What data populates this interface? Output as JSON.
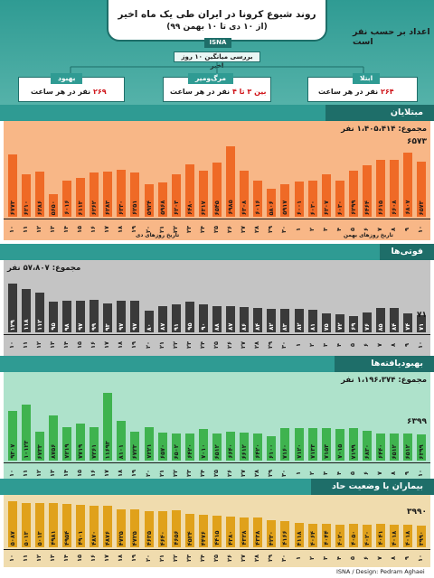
{
  "header": {
    "title": "روند شیوع کرونا در ایران طی یک ماه اخیر",
    "subtitle": "(از ۱۰ دی تا ۱۰ بهمن ۹۹)",
    "isna": "ISNA",
    "sub_heading": "اعداد بر حسب نفر است",
    "avg_label": "بررسی میانگین ۱۰ روز اخیر"
  },
  "stats": {
    "recovered": {
      "label": "بهبود",
      "value": "۲۶۹",
      "suffix": "نفر در هر ساعت"
    },
    "deaths": {
      "label": "مرگ‌ومیر",
      "value": "بین ۳ تا ۴",
      "suffix": "نفر در هر ساعت"
    },
    "infected": {
      "label": "ابتلا",
      "value": "۲۶۴",
      "suffix": "نفر در هر ساعت"
    }
  },
  "colors": {
    "teal": "#2f9b93",
    "teal_dark": "#1e6e69",
    "infected_bg": "#f8b787",
    "infected_bar": "#ef6a26",
    "deaths_bg": "#c4c4c4",
    "deaths_bar": "#3a3a3a",
    "recovered_bg": "#aee2cb",
    "recovered_bar": "#3fb34f",
    "critical_bg": "#f0dcae",
    "critical_bar": "#e0a11b",
    "highlight": "#d0161b"
  },
  "day_labels": [
    "۱۰",
    "۱۱",
    "۱۲",
    "۱۳",
    "۱۴",
    "۱۵",
    "۱۶",
    "۱۷",
    "۱۸",
    "۱۹",
    "۲۰",
    "۲۱",
    "۲۲",
    "۲۳",
    "۲۴",
    "۲۵",
    "۲۶",
    "۲۷",
    "۲۸",
    "۲۹",
    "۳۰",
    "۱",
    "۲",
    "۳",
    "۴",
    "۵",
    "۶",
    "۷",
    "۸",
    "۹",
    "۱۰"
  ],
  "month_labels": {
    "dey": "تاریخ روزهای دی",
    "bahman": "تاریخ روزهای بهمن"
  },
  "chart_data": [
    {
      "type": "bar",
      "title": "مبتلایان",
      "total": "مجموع: ۱،۴۰۵،۴۱۴ نفر",
      "categories": [
        "۱۰",
        "۱۱",
        "۱۲",
        "۱۳",
        "۱۴",
        "۱۵",
        "۱۶",
        "۱۷",
        "۱۸",
        "۱۹",
        "۲۰",
        "۲۱",
        "۲۲",
        "۲۳",
        "۲۴",
        "۲۵",
        "۲۶",
        "۲۷",
        "۲۸",
        "۲۹",
        "۳۰",
        "۱",
        "۲",
        "۳",
        "۴",
        "۵",
        "۶",
        "۷",
        "۸",
        "۹",
        "۱۰"
      ],
      "values": [
        6773,
        6210,
        6286,
        5650,
        6016,
        6113,
        6262,
        6283,
        6330,
        6251,
        5924,
        5968,
        6203,
        6480,
        6317,
        6545,
        6985,
        6308,
        6016,
        5806,
        5917,
        6001,
        6030,
        6207,
        6030,
        6299,
        6464,
        6615,
        6608,
        6807,
        6573
      ],
      "labels": [
        "۶۷۷۳",
        "۶۲۱۰",
        "۶۲۸۶",
        "۵۶۵۰",
        "۶۰۱۶",
        "۶۱۱۳",
        "۶۲۶۲",
        "۶۲۸۳",
        "۶۳۳۰",
        "۶۲۵۱",
        "۵۹۲۴",
        "۵۹۶۸",
        "۶۲۰۳",
        "۶۴۸۰",
        "۶۳۱۷",
        "۶۵۴۵",
        "۶۹۸۵",
        "۶۳۰۸",
        "۶۰۱۶",
        "۵۸۰۶",
        "۵۹۱۷",
        "۶۰۰۱",
        "۶۰۳۰",
        "۶۲۰۷",
        "۶۰۳۰",
        "۶۲۹۹",
        "۶۴۶۴",
        "۶۶۱۵",
        "۶۶۰۸",
        "۶۸۰۷",
        "۶۵۷۳"
      ],
      "last_value": "۶۵۷۳",
      "ylim": [
        5000,
        7100
      ]
    },
    {
      "type": "bar",
      "title": "فوتی‌ها",
      "total": "مجموع: ۵۷،۸۰۷ نفر",
      "categories": [
        "۱۰",
        "۱۱",
        "۱۲",
        "۱۳",
        "۱۴",
        "۱۵",
        "۱۶",
        "۱۷",
        "۱۸",
        "۱۹",
        "۲۰",
        "۲۱",
        "۲۲",
        "۲۳",
        "۲۴",
        "۲۵",
        "۲۶",
        "۲۷",
        "۲۸",
        "۲۹",
        "۳۰",
        "۱",
        "۲",
        "۳",
        "۴",
        "۵",
        "۶",
        "۷",
        "۸",
        "۹",
        "۱۰"
      ],
      "values": [
        129,
        118,
        112,
        95,
        98,
        97,
        99,
        93,
        97,
        97,
        80,
        87,
        91,
        95,
        90,
        88,
        87,
        86,
        84,
        82,
        83,
        82,
        81,
        75,
        72,
        69,
        76,
        85,
        84,
        74,
        71
      ],
      "labels": [
        "۱۲۹",
        "۱۱۸",
        "۱۱۲",
        "۹۵",
        "۹۸",
        "۹۷",
        "۹۹",
        "۹۳",
        "۹۷",
        "۹۷",
        "۸۰",
        "۸۷",
        "۹۱",
        "۹۵",
        "۹۰",
        "۸۸",
        "۸۷",
        "۸۶",
        "۸۴",
        "۸۲",
        "۸۳",
        "۸۲",
        "۸۱",
        "۷۵",
        "۷۲",
        "۶۹",
        "۷۶",
        "۸۵",
        "۸۴",
        "۷۴",
        "۷۱"
      ],
      "last_value": "۷۱",
      "ylim": [
        40,
        135
      ]
    },
    {
      "type": "bar",
      "title": "بهبودیافته‌ها",
      "total": "مجموع: ۱،۱۹۶،۳۷۴ نفر",
      "categories": [
        "۱۰",
        "۱۱",
        "۱۲",
        "۱۳",
        "۱۴",
        "۱۵",
        "۱۶",
        "۱۷",
        "۱۸",
        "۱۹",
        "۲۰",
        "۲۱",
        "۲۲",
        "۲۳",
        "۲۴",
        "۲۵",
        "۲۶",
        "۲۷",
        "۲۸",
        "۲۹",
        "۳۰",
        "۱",
        "۲",
        "۳",
        "۴",
        "۵",
        "۶",
        "۷",
        "۸",
        "۹",
        "۱۰"
      ],
      "values": [
        9307,
        10123,
        6733,
        8756,
        7219,
        7719,
        7261,
        11693,
        8101,
        6723,
        7221,
        6570,
        6502,
        6420,
        7010,
        6512,
        6640,
        6612,
        6420,
        6100,
        7160,
        7120,
        7133,
        7153,
        7015,
        7199,
        6830,
        6440,
        6512,
        6512,
        6399
      ],
      "labels": [
        "۹۳۰۷",
        "۱۰۱۲۳",
        "۶۷۳۳",
        "۸۷۵۶",
        "۷۲۱۹",
        "۷۷۱۹",
        "۷۲۶۱",
        "۱۱۶۹۳",
        "۸۱۰۱",
        "۶۷۲۳",
        "۷۲۲۱",
        "۶۵۷۰",
        "۶۵۰۲",
        "۶۴۲۰",
        "۷۰۱۰",
        "۶۵۱۲",
        "۶۶۴۰",
        "۶۶۱۲",
        "۶۴۲۰",
        "۶۱۰۰",
        "۷۱۶۰",
        "۷۱۲۰",
        "۷۱۳۳",
        "۷۱۵۳",
        "۷۰۱۵",
        "۷۱۹۹",
        "۶۸۳۰",
        "۶۴۴۰",
        "۶۵۱۲",
        "۶۵۱۲",
        "۶۳۹۹"
      ],
      "last_value": "۶۳۹۹",
      "ylim": [
        3000,
        12000
      ]
    },
    {
      "type": "bar",
      "title": "بیماران با وضعیت حاد",
      "total": "",
      "categories": [
        "۱۰",
        "۱۱",
        "۱۲",
        "۱۳",
        "۱۴",
        "۱۵",
        "۱۶",
        "۱۷",
        "۱۸",
        "۱۹",
        "۲۰",
        "۲۱",
        "۲۲",
        "۲۳",
        "۲۴",
        "۲۵",
        "۲۶",
        "۲۷",
        "۲۸",
        "۲۹",
        "۳۰",
        "۱",
        "۲",
        "۳",
        "۴",
        "۵",
        "۶",
        "۷",
        "۸",
        "۹",
        "۱۰"
      ],
      "values": [
        5087,
        5013,
        5013,
        4981,
        4954,
        4901,
        4870,
        4876,
        4725,
        4725,
        4635,
        4640,
        4656,
        4524,
        4476,
        4415,
        4380,
        4328,
        4338,
        4230,
        4166,
        4118,
        4064,
        4044,
        4020,
        4050,
        4020,
        4041,
        4018,
        4018,
        3990
      ],
      "labels": [
        "۵۰۸۷",
        "۵۰۱۳",
        "۵۰۱۳",
        "۴۹۸۱",
        "۴۹۵۴",
        "۴۹۰۱",
        "۴۸۷۰",
        "۴۸۷۶",
        "۴۷۲۵",
        "۴۷۲۵",
        "۴۶۳۵",
        "۴۶۴۰",
        "۴۶۵۶",
        "۴۵۲۴",
        "۴۴۷۶",
        "۴۴۱۵",
        "۴۳۸۰",
        "۴۳۲۸",
        "۴۳۳۸",
        "۴۲۳۰",
        "۴۱۶۶",
        "۴۱۱۸",
        "۴۰۶۴",
        "۴۰۴۴",
        "۴۰۲۰",
        "۴۰۵۰",
        "۴۰۲۰",
        "۴۰۴۱",
        "۴۰۱۸",
        "۴۰۱۸",
        "۳۹۹۰"
      ],
      "last_value": "۳۹۹۰",
      "ylim": [
        3000,
        5200
      ]
    }
  ],
  "footer": {
    "credit": "ISNA / Design: Pedram Aghaei"
  }
}
